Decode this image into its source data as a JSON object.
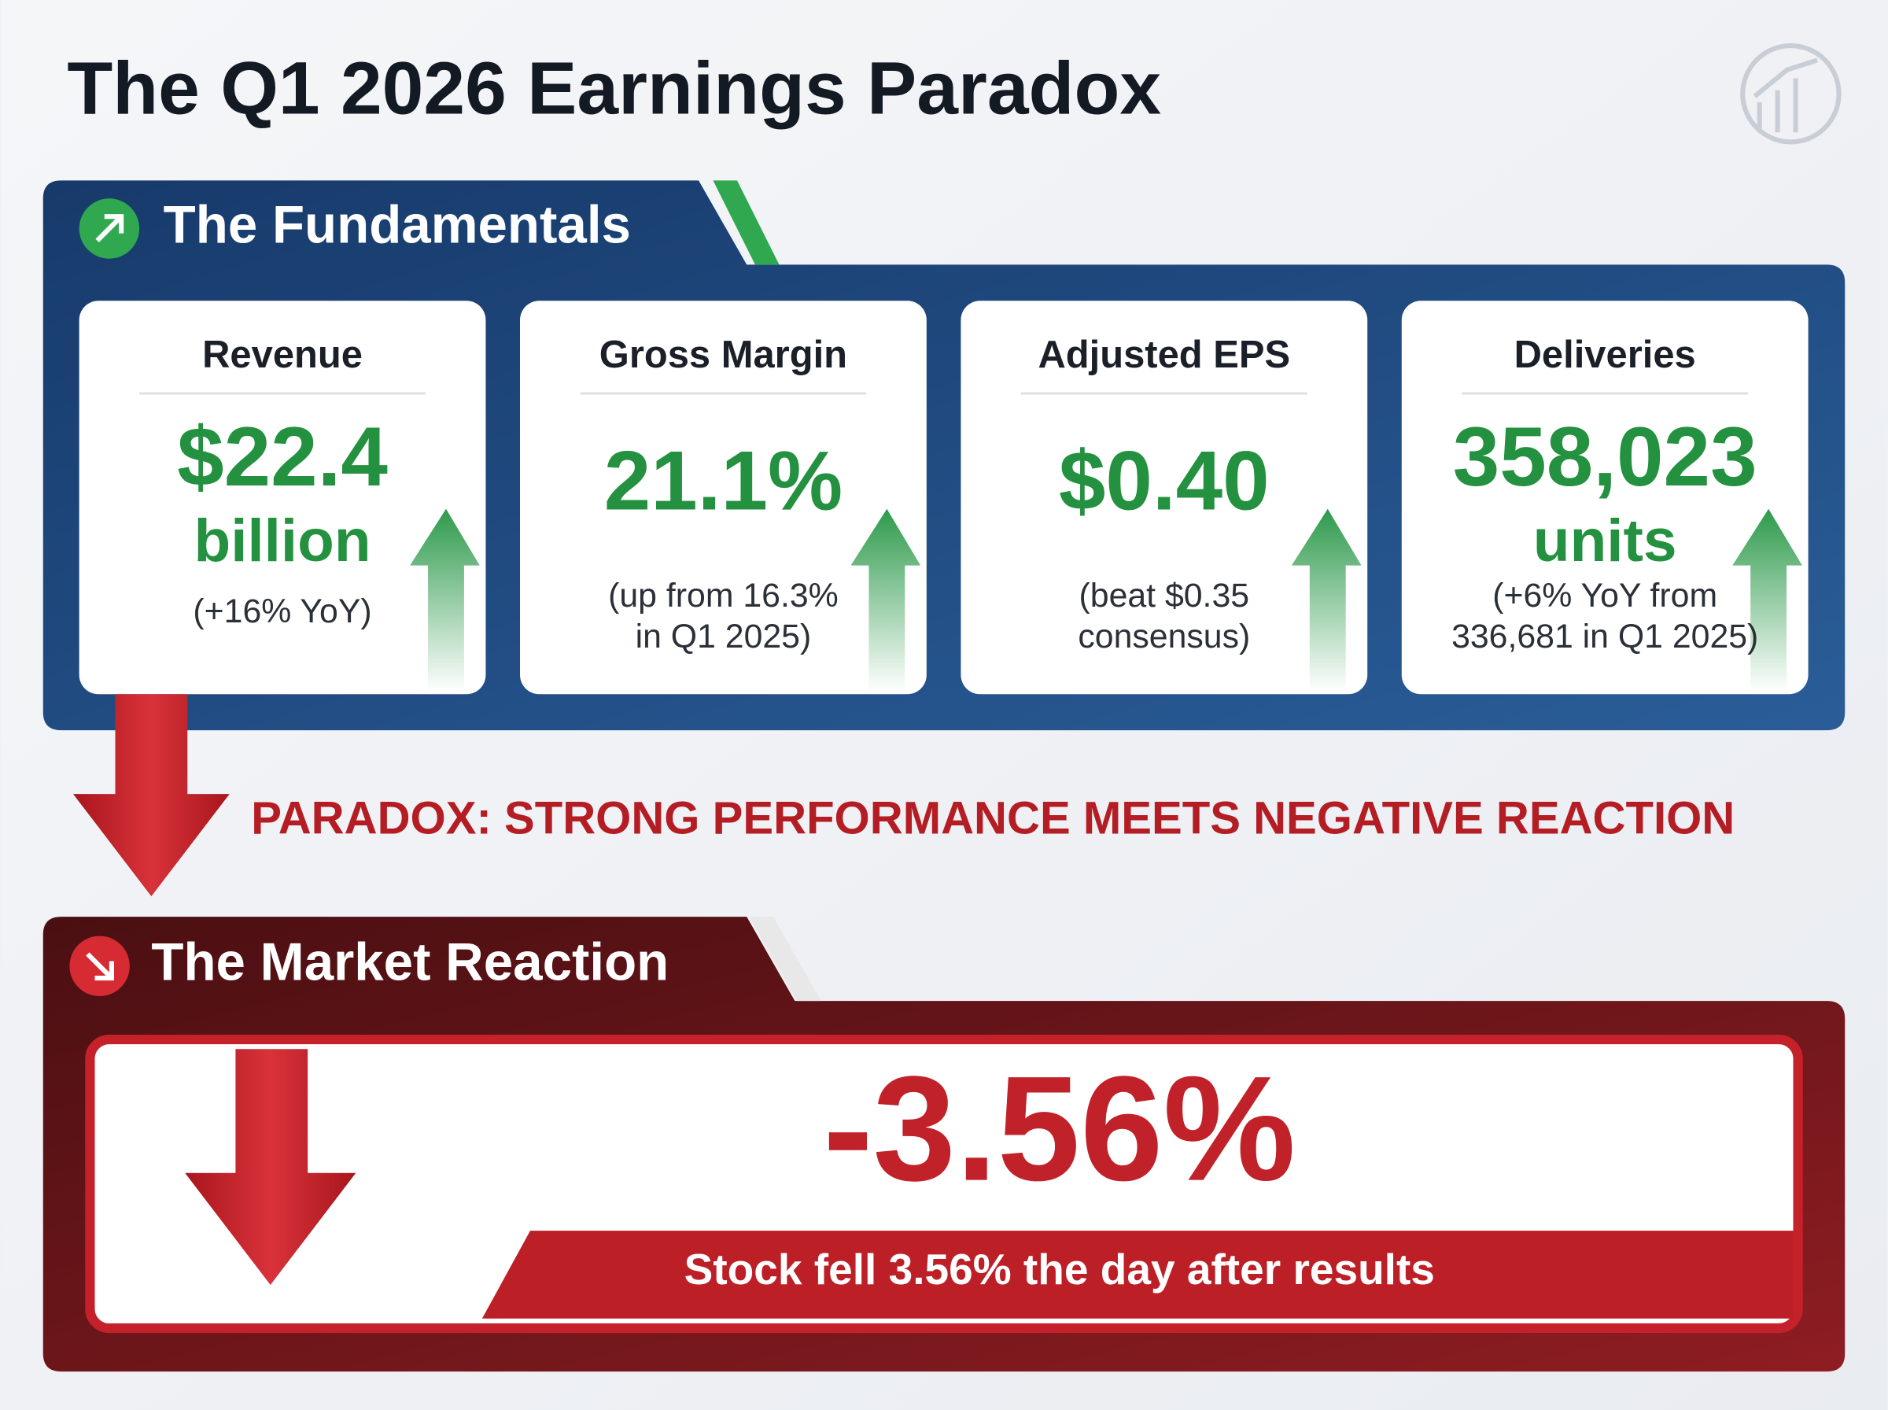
{
  "title": "The Q1 2026 Earnings Paradox",
  "fundamentals": {
    "heading": "The Fundamentals",
    "cards": [
      {
        "label": "Revenue",
        "value": [
          "$22.4",
          "billion"
        ],
        "note": [
          "(+16% YoY)"
        ]
      },
      {
        "label": "Gross Margin",
        "value": [
          "21.1%"
        ],
        "note": [
          "(up from 16.3%",
          "in Q1 2025)"
        ]
      },
      {
        "label": "Adjusted EPS",
        "value": [
          "$0.40"
        ],
        "note": [
          "(beat $0.35",
          "consensus)"
        ]
      },
      {
        "label": "Deliveries",
        "value": [
          "358,023",
          "units"
        ],
        "note": [
          "(+6% YoY from",
          "336,681 in Q1 2025)"
        ]
      }
    ]
  },
  "paradox": "PARADOX: STRONG PERFORMANCE MEETS NEGATIVE REACTION",
  "reaction": {
    "heading": "The Market Reaction",
    "value": "-3.56%",
    "note": "Stock fell 3.56% the day after results"
  }
}
